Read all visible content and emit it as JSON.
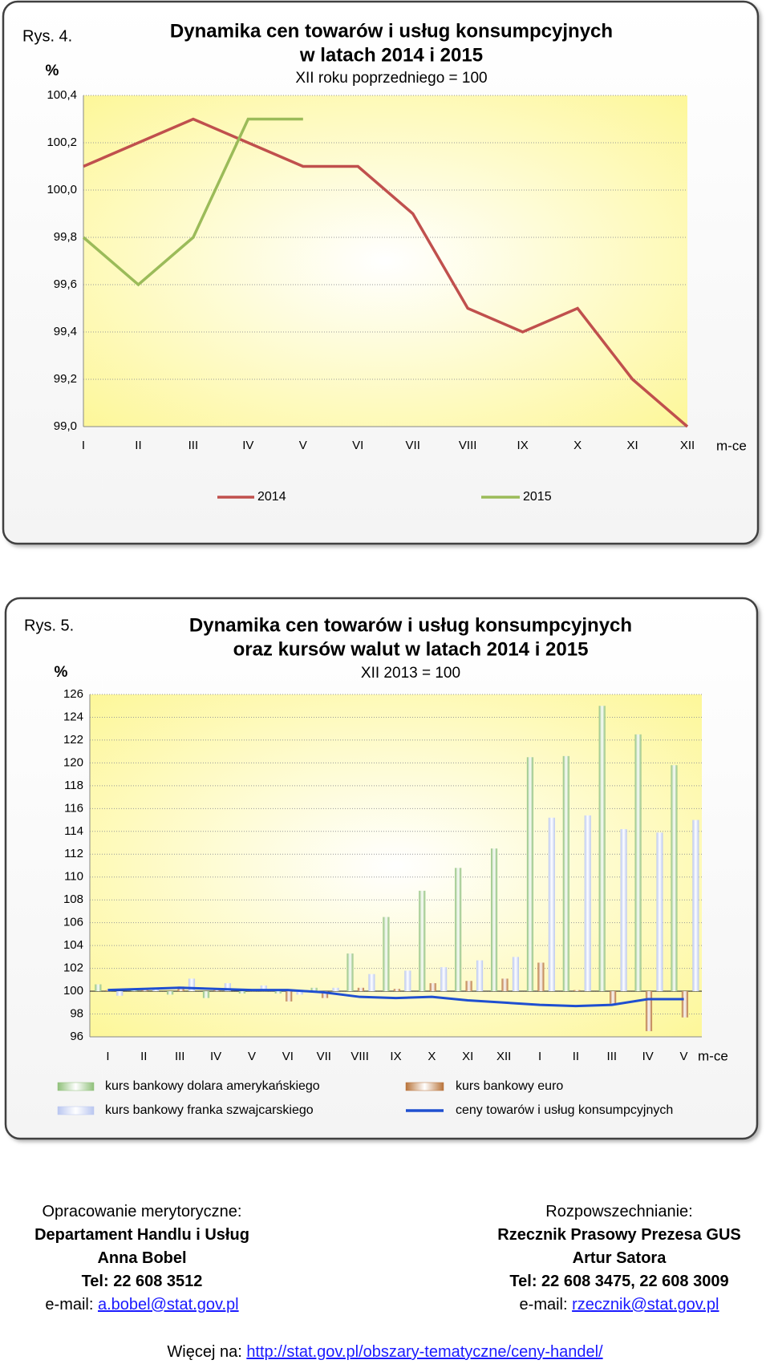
{
  "chart_data": [
    {
      "type": "line",
      "figure_label": "Rys. 4.",
      "title": [
        "Dynamika cen towarów i usług konsumpcyjnych",
        "w latach 2014 i 2015"
      ],
      "subtitle": "XII roku poprzedniego = 100",
      "y_unit": "%",
      "x_unit": "m-ce",
      "categories": [
        "I",
        "II",
        "III",
        "IV",
        "V",
        "VI",
        "VII",
        "VIII",
        "IX",
        "X",
        "XI",
        "XII"
      ],
      "series": [
        {
          "name": "2014",
          "color": "#c0504d",
          "values": [
            100.1,
            100.2,
            100.3,
            100.2,
            100.1,
            100.1,
            99.9,
            99.5,
            99.4,
            99.5,
            99.2,
            99.0
          ]
        },
        {
          "name": "2015",
          "color": "#9bbb59",
          "values": [
            99.8,
            99.6,
            99.8,
            100.3,
            100.3,
            null,
            null,
            null,
            null,
            null,
            null,
            null
          ]
        }
      ],
      "ylim": [
        99.0,
        100.4
      ],
      "yticks": [
        {
          "value": 99.0,
          "label": "99,0"
        },
        {
          "value": 99.2,
          "label": "99,2"
        },
        {
          "value": 99.4,
          "label": "99,4"
        },
        {
          "value": 99.6,
          "label": "99,6"
        },
        {
          "value": 99.8,
          "label": "99,8"
        },
        {
          "value": 100.0,
          "label": "100,0"
        },
        {
          "value": 100.2,
          "label": "100,2"
        },
        {
          "value": 100.4,
          "label": "100,4"
        }
      ],
      "grid": true,
      "legend": "bottom"
    },
    {
      "type": "bar",
      "figure_label": "Rys. 5.",
      "title": [
        "Dynamika cen towarów i usług konsumpcyjnych",
        "oraz kursów walut w latach 2014 i 2015"
      ],
      "subtitle": "XII 2013 = 100",
      "y_unit": "%",
      "x_unit": "m-ce",
      "categories": [
        "I",
        "II",
        "III",
        "IV",
        "V",
        "VI",
        "VII",
        "VIII",
        "IX",
        "X",
        "XI",
        "XII",
        "I",
        "II",
        "III",
        "IV",
        "V"
      ],
      "series": [
        {
          "name": "kurs bankowy dolara amerykańskiego",
          "color": "#8fc07a",
          "values": [
            100.6,
            100.2,
            99.7,
            99.4,
            99.8,
            99.8,
            100.3,
            103.3,
            106.5,
            108.8,
            110.8,
            112.5,
            120.5,
            120.6,
            125.0,
            122.5,
            119.8
          ]
        },
        {
          "name": "kurs bankowy euro",
          "color": "#b8733a",
          "values": [
            100.1,
            100.1,
            100.4,
            100.1,
            100.1,
            99.1,
            99.4,
            100.3,
            100.2,
            100.7,
            100.9,
            101.1,
            102.5,
            100.1,
            98.9,
            96.5,
            97.7
          ]
        },
        {
          "name": "kurs bankowy franka szwajcarskiego",
          "color": "#b9c6f0",
          "values": [
            99.6,
            100.3,
            101.1,
            100.7,
            100.5,
            99.7,
            100.3,
            101.5,
            101.8,
            102.1,
            102.7,
            103.0,
            115.2,
            115.4,
            114.2,
            113.9,
            115.0
          ]
        },
        {
          "name": "ceny towarów i usług konsumpcyjnych",
          "color": "#1f4fd0",
          "type": "line",
          "values": [
            100.1,
            100.2,
            100.3,
            100.2,
            100.1,
            100.1,
            99.9,
            99.5,
            99.4,
            99.5,
            99.2,
            99.0,
            98.8,
            98.7,
            98.8,
            99.3,
            99.3
          ]
        }
      ],
      "ylim": [
        96,
        126
      ],
      "yticks": [
        96,
        98,
        100,
        102,
        104,
        106,
        108,
        110,
        112,
        114,
        116,
        118,
        120,
        122,
        124,
        126
      ],
      "x_axis_at": 100,
      "grid": true,
      "legend": "bottom"
    }
  ],
  "footer": {
    "left": {
      "heading": "Opracowanie merytoryczne:",
      "lines": [
        "Departament Handlu i Usług",
        "Anna Bobel",
        "Tel: 22 608 3512"
      ],
      "email_label": "e-mail:",
      "email": "a.bobel@stat.gov.pl"
    },
    "right": {
      "heading": "Rozpowszechnianie:",
      "lines": [
        "Rzecznik Prasowy Prezesa GUS",
        "Artur Satora",
        "Tel: 22 608 3475, 22 608 3009"
      ],
      "email_label": "e-mail:",
      "email": "rzecznik@stat.gov.pl"
    },
    "more_label": "Więcej na:",
    "more_link": "http://stat.gov.pl/obszary-tematyczne/ceny-handel/"
  }
}
